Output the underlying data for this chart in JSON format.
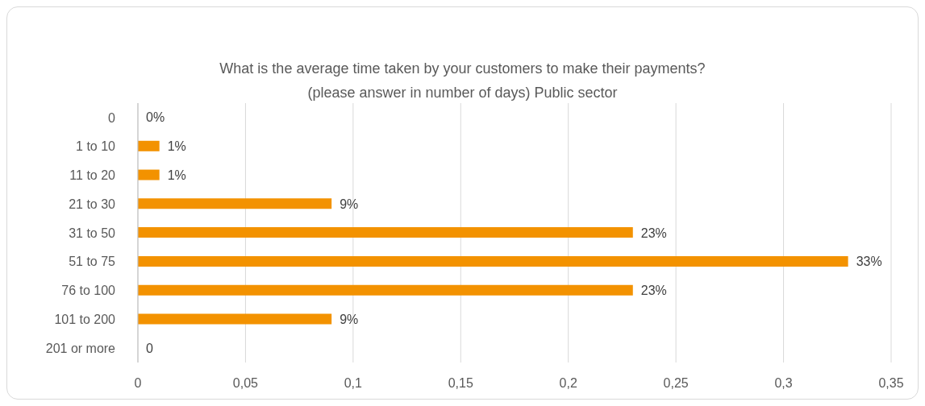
{
  "chart_data": {
    "type": "bar",
    "orientation": "horizontal",
    "title": "What is the average time taken by your customers to make their payments?\n(please answer in number of days) Public sector",
    "categories": [
      "0",
      "1 to 10",
      "11 to 20",
      "21 to 30",
      "31 to 50",
      "51 to 75",
      "76 to 100",
      "101 to 200",
      "201 or more"
    ],
    "values": [
      0,
      0.01,
      0.01,
      0.09,
      0.23,
      0.33,
      0.23,
      0.09,
      0
    ],
    "value_labels": [
      "0%",
      "1%",
      "1%",
      "9%",
      "23%",
      "33%",
      "23%",
      "9%",
      "0"
    ],
    "color": "#f39200",
    "xlim": [
      0,
      0.35
    ],
    "xticks": [
      0,
      {
        "value": 0.05,
        "label": "0,05"
      },
      {
        "value": 0.1,
        "label": "0,1"
      },
      {
        "value": 0.15,
        "label": "0,15"
      },
      {
        "value": 0.2,
        "label": "0,2"
      },
      {
        "value": 0.25,
        "label": "0,25"
      },
      {
        "value": 0.3,
        "label": "0,3"
      },
      {
        "value": 0.35,
        "label": "0,35"
      }
    ],
    "grid": "x"
  }
}
